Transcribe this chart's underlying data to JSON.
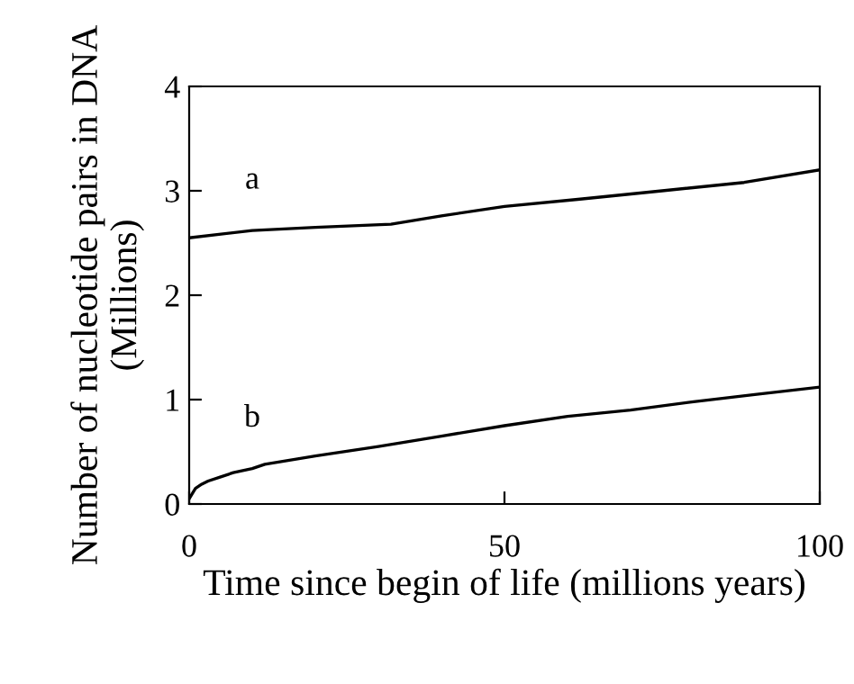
{
  "chart_data": {
    "type": "line",
    "xlabel": "Time since begin of life (millions years)",
    "ylabel": "Number of nucleotide pairs in DNA\n(Millions)",
    "series": [
      {
        "name": "a",
        "color": "#000000",
        "x": [
          0,
          10,
          20,
          32,
          40,
          50,
          62,
          75,
          88,
          100
        ],
        "values": [
          2.55,
          2.62,
          2.65,
          2.68,
          2.76,
          2.85,
          2.92,
          3.0,
          3.08,
          3.2
        ]
      },
      {
        "name": "b",
        "color": "#000000",
        "x": [
          0,
          0.5,
          1,
          2,
          3,
          5,
          7,
          10,
          12,
          20,
          30,
          40,
          50,
          60,
          70,
          80,
          90,
          100
        ],
        "values": [
          0.05,
          0.1,
          0.15,
          0.19,
          0.22,
          0.26,
          0.3,
          0.34,
          0.38,
          0.46,
          0.55,
          0.65,
          0.75,
          0.84,
          0.9,
          0.98,
          1.05,
          1.12
        ]
      }
    ],
    "xlim": [
      0,
      100
    ],
    "xticks": [
      0,
      50,
      100
    ],
    "ylim": [
      0,
      4
    ],
    "yticks": [
      0,
      1,
      2,
      3,
      4
    ],
    "grid": false,
    "legend": false,
    "marker": "none",
    "line_style": "solid"
  }
}
